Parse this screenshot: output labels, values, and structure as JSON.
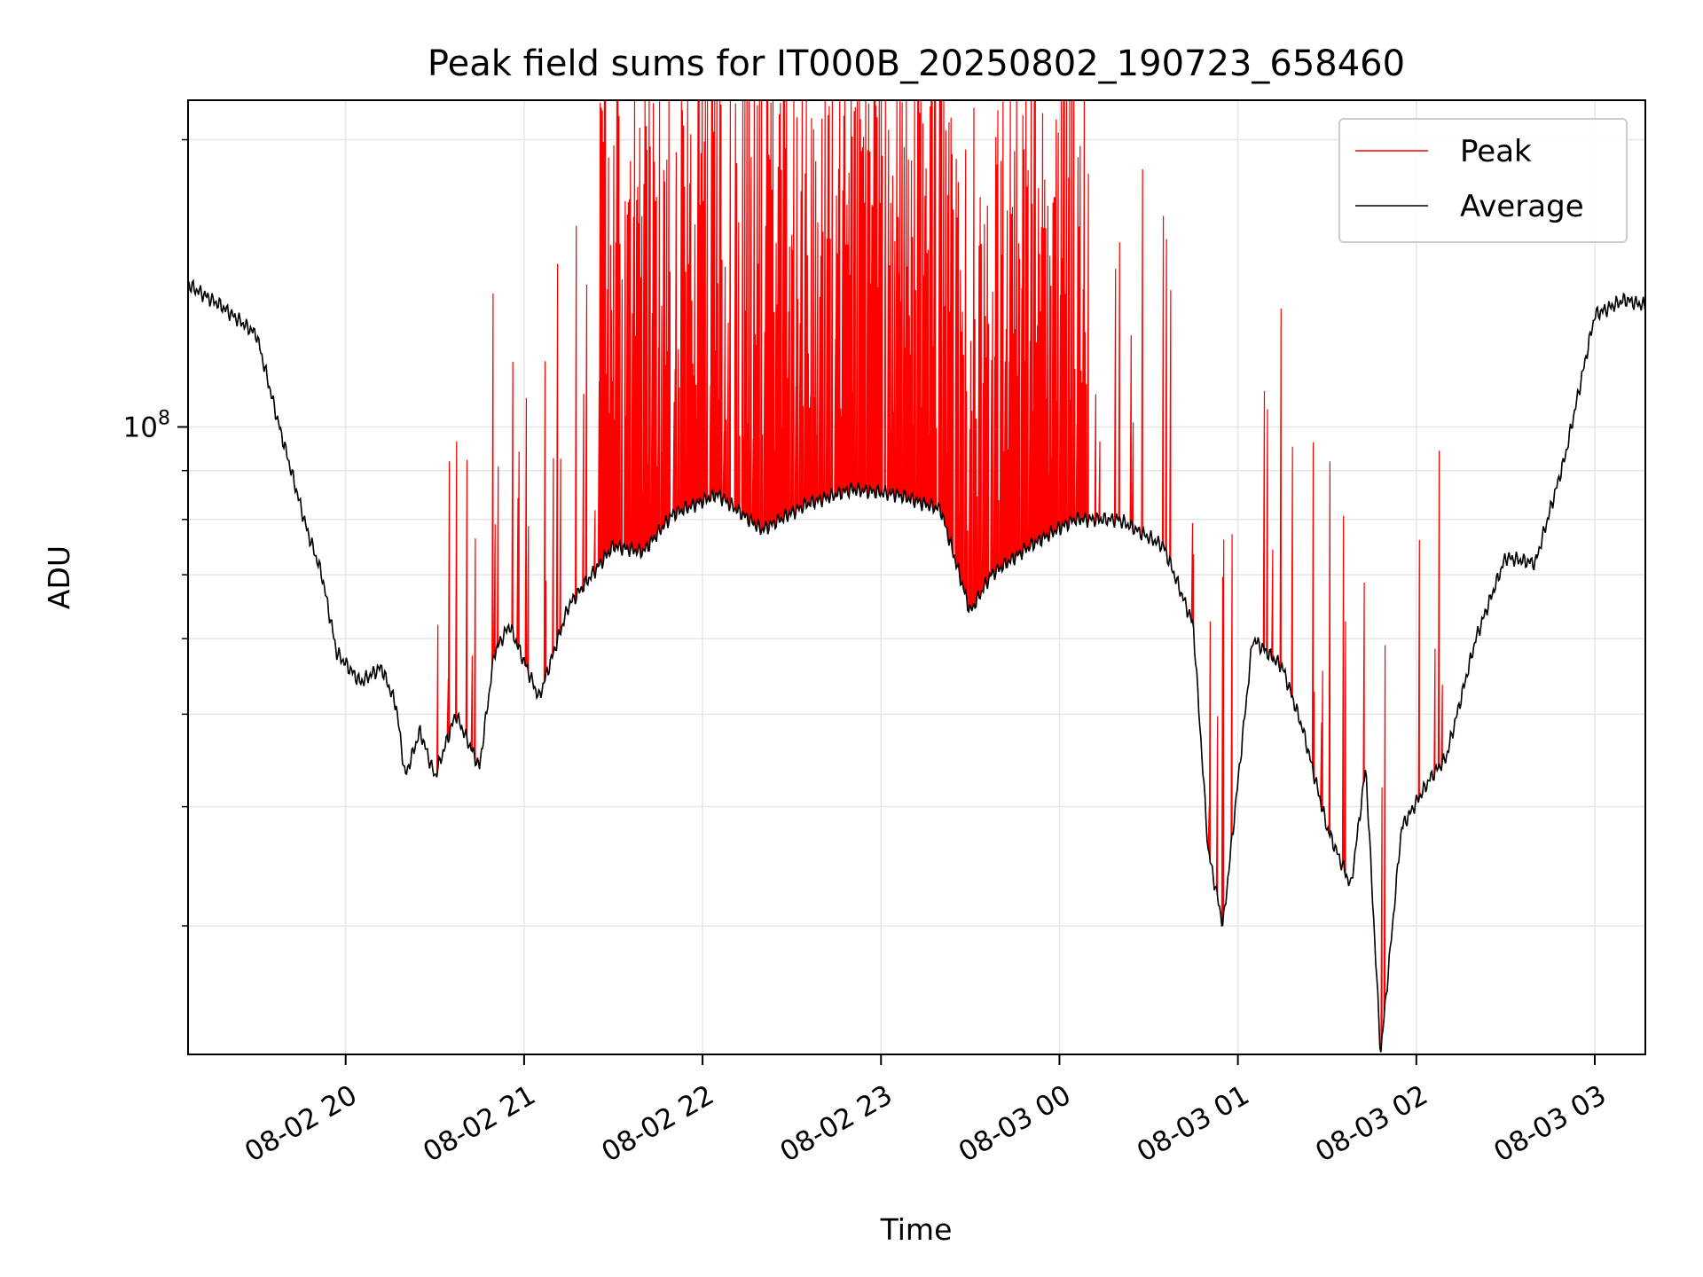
{
  "chart_data": {
    "type": "line",
    "title": "Peak field sums for IT000B_20250802_190723_658460",
    "xlabel": "Time",
    "ylabel": "ADU",
    "y_scale": "log",
    "ylim": [
      22000000,
      220000000
    ],
    "xlim": [
      "2025-08-02 19:07",
      "2025-08-03 03:17"
    ],
    "y_tick_labels": [
      {
        "value": 100000000,
        "label": "10^8"
      }
    ],
    "x_ticks": [
      {
        "value": "2025-08-02 20:00",
        "label": "08-02 20"
      },
      {
        "value": "2025-08-02 21:00",
        "label": "08-02 21"
      },
      {
        "value": "2025-08-02 22:00",
        "label": "08-02 22"
      },
      {
        "value": "2025-08-02 23:00",
        "label": "08-02 23"
      },
      {
        "value": "2025-08-03 00:00",
        "label": "08-03 00"
      },
      {
        "value": "2025-08-03 01:00",
        "label": "08-03 01"
      },
      {
        "value": "2025-08-03 02:00",
        "label": "08-03 02"
      },
      {
        "value": "2025-08-03 03:00",
        "label": "08-03 03"
      }
    ],
    "grid": true,
    "legend_position": "top-right",
    "series": [
      {
        "name": "Peak",
        "color": "#ff0000",
        "description_values": "Follows Average closely at the start and end; between about 20:25 and 02:10 it repeatedly spikes far above the average, often reaching the top of the axis (~2.2e8) between 21:25 and 00:10."
      },
      {
        "name": "Average",
        "color": "#000000",
        "x": [
          "2025-08-02 19:07",
          "2025-08-02 19:18",
          "2025-08-02 19:30",
          "2025-08-02 19:37",
          "2025-08-02 19:47",
          "2025-08-02 19:52",
          "2025-08-02 19:57",
          "2025-08-02 20:05",
          "2025-08-02 20:12",
          "2025-08-02 20:17",
          "2025-08-02 20:20",
          "2025-08-02 20:25",
          "2025-08-02 20:30",
          "2025-08-02 20:37",
          "2025-08-02 20:45",
          "2025-08-02 20:50",
          "2025-08-02 20:55",
          "2025-08-02 21:05",
          "2025-08-02 21:15",
          "2025-08-02 21:30",
          "2025-08-02 21:40",
          "2025-08-02 21:50",
          "2025-08-02 22:05",
          "2025-08-02 22:20",
          "2025-08-02 22:35",
          "2025-08-02 22:50",
          "2025-08-02 23:05",
          "2025-08-02 23:20",
          "2025-08-02 23:30",
          "2025-08-02 23:37",
          "2025-08-02 23:50",
          "2025-08-03 00:05",
          "2025-08-03 00:20",
          "2025-08-03 00:35",
          "2025-08-03 00:45",
          "2025-08-03 00:50",
          "2025-08-03 00:55",
          "2025-08-03 01:05",
          "2025-08-03 01:15",
          "2025-08-03 01:22",
          "2025-08-03 01:30",
          "2025-08-03 01:38",
          "2025-08-03 01:43",
          "2025-08-03 01:48",
          "2025-08-03 01:55",
          "2025-08-03 02:05",
          "2025-08-03 02:10",
          "2025-08-03 02:20",
          "2025-08-03 02:30",
          "2025-08-03 02:40",
          "2025-08-03 02:50",
          "2025-08-03 03:00",
          "2025-08-03 03:10",
          "2025-08-03 03:17"
        ],
        "values": [
          141000000,
          134000000,
          125000000,
          102000000,
          78000000,
          70000000,
          58000000,
          54000000,
          56000000,
          51000000,
          43000000,
          48000000,
          43000000,
          50000000,
          44000000,
          58000000,
          62000000,
          52000000,
          65000000,
          75000000,
          74000000,
          81000000,
          85000000,
          78000000,
          83000000,
          86000000,
          85000000,
          82000000,
          64000000,
          70000000,
          75000000,
          80000000,
          80000000,
          75000000,
          62000000,
          36000000,
          30000000,
          60000000,
          56000000,
          48000000,
          38000000,
          33000000,
          44000000,
          22000000,
          38000000,
          43000000,
          45000000,
          60000000,
          73000000,
          72000000,
          93000000,
          131000000,
          136000000,
          134000000
        ]
      }
    ]
  }
}
